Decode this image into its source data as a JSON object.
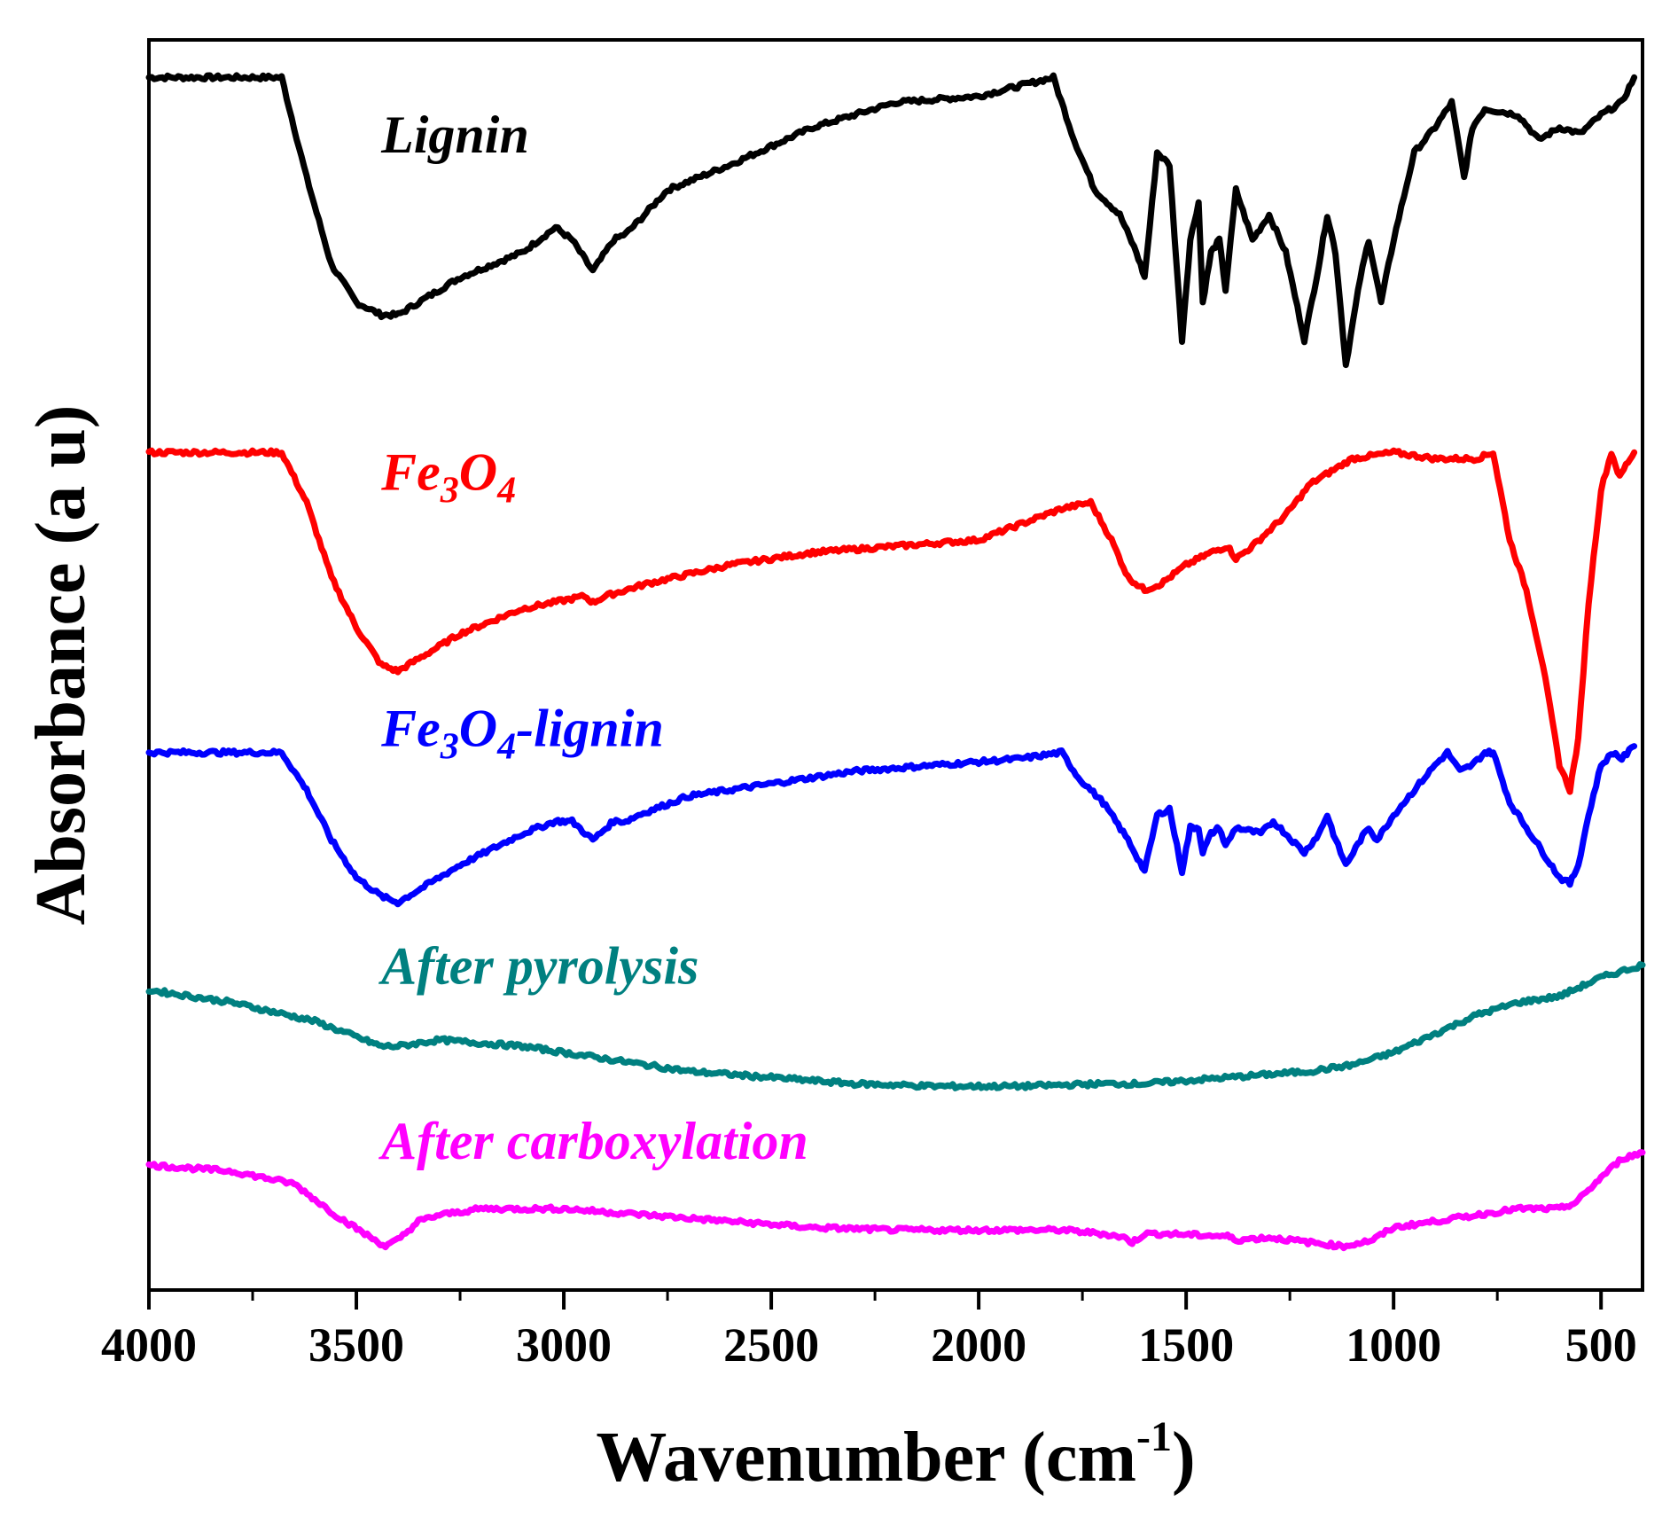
{
  "chart_data": {
    "type": "line",
    "title": "",
    "xlabel": "Wavenumber (cm",
    "xlabel_sup": "-1",
    "xlabel_close": ")",
    "ylabel": "Absorbance (a u)",
    "xlim": [
      4000,
      400
    ],
    "ylim": [
      0,
      100
    ],
    "x_ticks": [
      4000,
      3500,
      3000,
      2500,
      2000,
      1500,
      1000,
      500
    ],
    "x_tick_labels": [
      "4000",
      "3500",
      "3000",
      "2500",
      "2000",
      "1500",
      "1000",
      "500"
    ],
    "y_ticks_shown": false,
    "grid": false,
    "series": [
      {
        "name": "Lignin",
        "label_parts": [
          {
            "t": "Lignin"
          }
        ],
        "label_at": [
          3440,
          91
        ],
        "color": "#000000",
        "points": [
          [
            4000,
            97
          ],
          [
            3680,
            97
          ],
          [
            3620,
            89
          ],
          [
            3560,
            82
          ],
          [
            3500,
            79
          ],
          [
            3440,
            78
          ],
          [
            3400,
            78
          ],
          [
            3350,
            79
          ],
          [
            3250,
            81
          ],
          [
            3100,
            83
          ],
          [
            3020,
            85
          ],
          [
            2980,
            84
          ],
          [
            2930,
            81.5
          ],
          [
            2880,
            84
          ],
          [
            2850,
            84.5
          ],
          [
            2820,
            85.5
          ],
          [
            2750,
            88
          ],
          [
            2600,
            90
          ],
          [
            2400,
            93
          ],
          [
            2200,
            95
          ],
          [
            2000,
            95.5
          ],
          [
            1820,
            97
          ],
          [
            1770,
            92
          ],
          [
            1720,
            88
          ],
          [
            1660,
            86
          ],
          [
            1620,
            83
          ],
          [
            1600,
            81
          ],
          [
            1570,
            91
          ],
          [
            1540,
            90
          ],
          [
            1510,
            76
          ],
          [
            1490,
            84
          ],
          [
            1470,
            87
          ],
          [
            1460,
            79
          ],
          [
            1440,
            83
          ],
          [
            1420,
            84
          ],
          [
            1405,
            80
          ],
          [
            1380,
            88
          ],
          [
            1340,
            84
          ],
          [
            1300,
            86
          ],
          [
            1260,
            83
          ],
          [
            1215,
            76
          ],
          [
            1180,
            82
          ],
          [
            1160,
            86
          ],
          [
            1140,
            83
          ],
          [
            1115,
            74
          ],
          [
            1080,
            81
          ],
          [
            1060,
            84
          ],
          [
            1030,
            79
          ],
          [
            1000,
            84
          ],
          [
            950,
            91
          ],
          [
            900,
            93
          ],
          [
            860,
            95
          ],
          [
            830,
            89
          ],
          [
            810,
            93
          ],
          [
            780,
            94.5
          ],
          [
            700,
            94
          ],
          [
            650,
            92
          ],
          [
            600,
            93
          ],
          [
            550,
            92.5
          ],
          [
            500,
            94
          ],
          [
            450,
            95
          ],
          [
            420,
            97
          ]
        ]
      },
      {
        "name": "Fe3O4",
        "label_parts": [
          {
            "t": "Fe"
          },
          {
            "t": "3",
            "sub": true
          },
          {
            "t": "O"
          },
          {
            "t": "4",
            "sub": true
          }
        ],
        "label_at": [
          3440,
          64
        ],
        "color": "#ff0000",
        "points": [
          [
            4000,
            67
          ],
          [
            3680,
            67
          ],
          [
            3620,
            63
          ],
          [
            3560,
            57
          ],
          [
            3500,
            53
          ],
          [
            3440,
            50
          ],
          [
            3400,
            49.5
          ],
          [
            3350,
            50.5
          ],
          [
            3250,
            52.5
          ],
          [
            3100,
            54.5
          ],
          [
            2950,
            55.5
          ],
          [
            2930,
            55
          ],
          [
            2900,
            55.5
          ],
          [
            2800,
            56.5
          ],
          [
            2600,
            58
          ],
          [
            2400,
            59
          ],
          [
            2200,
            59.5
          ],
          [
            2000,
            60
          ],
          [
            1800,
            62.5
          ],
          [
            1730,
            63
          ],
          [
            1680,
            60
          ],
          [
            1640,
            57
          ],
          [
            1600,
            56
          ],
          [
            1560,
            56.5
          ],
          [
            1500,
            58
          ],
          [
            1440,
            59
          ],
          [
            1400,
            59.5
          ],
          [
            1380,
            58.5
          ],
          [
            1340,
            59.5
          ],
          [
            1260,
            62
          ],
          [
            1200,
            64.5
          ],
          [
            1100,
            66.5
          ],
          [
            1000,
            67
          ],
          [
            900,
            66.5
          ],
          [
            800,
            66.5
          ],
          [
            760,
            67
          ],
          [
            720,
            60
          ],
          [
            680,
            56
          ],
          [
            640,
            50
          ],
          [
            600,
            42
          ],
          [
            575,
            40
          ],
          [
            555,
            44
          ],
          [
            530,
            55
          ],
          [
            500,
            64
          ],
          [
            475,
            67
          ],
          [
            455,
            65
          ],
          [
            440,
            66
          ],
          [
            420,
            67
          ]
        ]
      },
      {
        "name": "Fe3O4-lignin",
        "label_parts": [
          {
            "t": "Fe"
          },
          {
            "t": "3",
            "sub": true
          },
          {
            "t": "O"
          },
          {
            "t": "4",
            "sub": true
          },
          {
            "t": "-lignin"
          }
        ],
        "label_at": [
          3440,
          43.5
        ],
        "color": "#0000ff",
        "points": [
          [
            4000,
            43
          ],
          [
            3680,
            43
          ],
          [
            3620,
            40
          ],
          [
            3560,
            36
          ],
          [
            3500,
            33
          ],
          [
            3440,
            31.5
          ],
          [
            3400,
            31
          ],
          [
            3350,
            32
          ],
          [
            3250,
            34
          ],
          [
            3100,
            36.5
          ],
          [
            3020,
            37.5
          ],
          [
            2980,
            37.5
          ],
          [
            2930,
            36
          ],
          [
            2880,
            37.5
          ],
          [
            2850,
            37.5
          ],
          [
            2820,
            38
          ],
          [
            2700,
            39.5
          ],
          [
            2500,
            40.5
          ],
          [
            2300,
            41.5
          ],
          [
            2100,
            42
          ],
          [
            1900,
            42.5
          ],
          [
            1800,
            43
          ],
          [
            1760,
            41
          ],
          [
            1700,
            39
          ],
          [
            1640,
            36
          ],
          [
            1600,
            33.5
          ],
          [
            1570,
            38
          ],
          [
            1540,
            38.5
          ],
          [
            1510,
            33.5
          ],
          [
            1490,
            37
          ],
          [
            1470,
            37
          ],
          [
            1460,
            35
          ],
          [
            1440,
            36.5
          ],
          [
            1420,
            37
          ],
          [
            1405,
            35.5
          ],
          [
            1380,
            37
          ],
          [
            1320,
            36.5
          ],
          [
            1290,
            37.5
          ],
          [
            1260,
            36.5
          ],
          [
            1215,
            35
          ],
          [
            1180,
            36.5
          ],
          [
            1160,
            38
          ],
          [
            1140,
            36
          ],
          [
            1115,
            34
          ],
          [
            1080,
            36
          ],
          [
            1060,
            37
          ],
          [
            1040,
            36
          ],
          [
            1000,
            38
          ],
          [
            950,
            40
          ],
          [
            900,
            42
          ],
          [
            870,
            43
          ],
          [
            840,
            41.5
          ],
          [
            810,
            42
          ],
          [
            780,
            43
          ],
          [
            760,
            43
          ],
          [
            720,
            39
          ],
          [
            680,
            37
          ],
          [
            640,
            35
          ],
          [
            600,
            33
          ],
          [
            575,
            32.5
          ],
          [
            555,
            34
          ],
          [
            530,
            38
          ],
          [
            500,
            42
          ],
          [
            470,
            43
          ],
          [
            450,
            42.5
          ],
          [
            420,
            43.5
          ]
        ]
      },
      {
        "name": "After pyrolysis",
        "label_parts": [
          {
            "t": "After pyrolysis"
          }
        ],
        "label_at": [
          3440,
          24.5
        ],
        "color": "#008080",
        "points": [
          [
            4000,
            24
          ],
          [
            3800,
            23
          ],
          [
            3600,
            21.5
          ],
          [
            3480,
            20
          ],
          [
            3440,
            19.5
          ],
          [
            3400,
            19.5
          ],
          [
            3300,
            20
          ],
          [
            3100,
            19.5
          ],
          [
            2900,
            18.5
          ],
          [
            2700,
            17.5
          ],
          [
            2500,
            17
          ],
          [
            2300,
            16.5
          ],
          [
            2100,
            16.3
          ],
          [
            1900,
            16.3
          ],
          [
            1700,
            16.5
          ],
          [
            1600,
            16.5
          ],
          [
            1400,
            17
          ],
          [
            1200,
            17.5
          ],
          [
            1100,
            18
          ],
          [
            1000,
            19
          ],
          [
            900,
            20.5
          ],
          [
            800,
            22
          ],
          [
            700,
            23
          ],
          [
            600,
            23.5
          ],
          [
            500,
            25
          ],
          [
            400,
            26
          ]
        ]
      },
      {
        "name": "After carboxylation",
        "label_parts": [
          {
            "t": "After carboxylation"
          }
        ],
        "label_at": [
          3440,
          10.5
        ],
        "color": "#ff00ff",
        "points": [
          [
            4000,
            10
          ],
          [
            3800,
            9.5
          ],
          [
            3650,
            8.5
          ],
          [
            3550,
            6
          ],
          [
            3480,
            4.5
          ],
          [
            3430,
            3.5
          ],
          [
            3400,
            4
          ],
          [
            3350,
            5.5
          ],
          [
            3300,
            6
          ],
          [
            3200,
            6.5
          ],
          [
            3000,
            6.5
          ],
          [
            2800,
            6
          ],
          [
            2600,
            5.5
          ],
          [
            2400,
            5
          ],
          [
            2200,
            4.8
          ],
          [
            2000,
            4.8
          ],
          [
            1800,
            4.8
          ],
          [
            1700,
            4.5
          ],
          [
            1650,
            4.2
          ],
          [
            1630,
            3.8
          ],
          [
            1600,
            4.5
          ],
          [
            1550,
            4.5
          ],
          [
            1400,
            4.3
          ],
          [
            1380,
            4
          ],
          [
            1300,
            4.2
          ],
          [
            1200,
            3.8
          ],
          [
            1120,
            3.5
          ],
          [
            1050,
            4
          ],
          [
            1000,
            5
          ],
          [
            900,
            5.5
          ],
          [
            800,
            6
          ],
          [
            700,
            6.5
          ],
          [
            600,
            6.5
          ],
          [
            560,
            7
          ],
          [
            500,
            9
          ],
          [
            450,
            10.5
          ],
          [
            400,
            11
          ]
        ]
      }
    ]
  }
}
